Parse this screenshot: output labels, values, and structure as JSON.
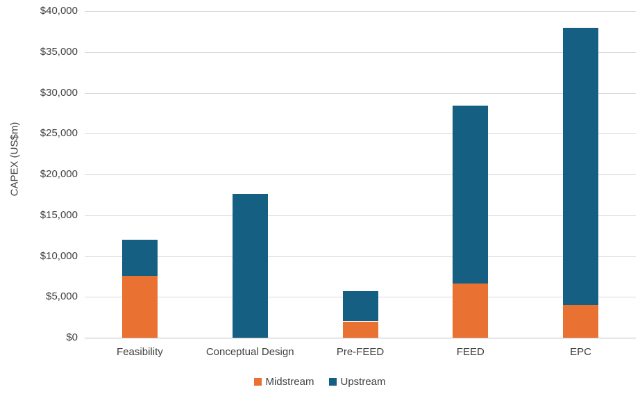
{
  "chart_data": {
    "type": "bar",
    "stacked": true,
    "title": "",
    "xlabel": "",
    "ylabel": "CAPEX (US$m)",
    "ylim": [
      0,
      40000
    ],
    "ytick_step": 5000,
    "ytick_labels": [
      "$0",
      "$5,000",
      "$10,000",
      "$15,000",
      "$20,000",
      "$25,000",
      "$30,000",
      "$35,000",
      "$40,000"
    ],
    "categories": [
      "Feasibility",
      "Conceptual Design",
      "Pre-FEED",
      "FEED",
      "EPC"
    ],
    "series": [
      {
        "name": "Midstream",
        "color": "#E97132",
        "values": [
          7600,
          0,
          2000,
          6600,
          4000
        ]
      },
      {
        "name": "Upstream",
        "color": "#156082",
        "values": [
          4400,
          17600,
          3700,
          21800,
          34000
        ]
      }
    ],
    "totals": [
      12000,
      17600,
      5700,
      28400,
      38000
    ],
    "legend_position": "bottom",
    "grid": true,
    "gridline_color": "#D9D9D9",
    "axis_line_color": "#BFBFBF",
    "text_color": "#404040",
    "background_color": "#FFFFFF"
  }
}
